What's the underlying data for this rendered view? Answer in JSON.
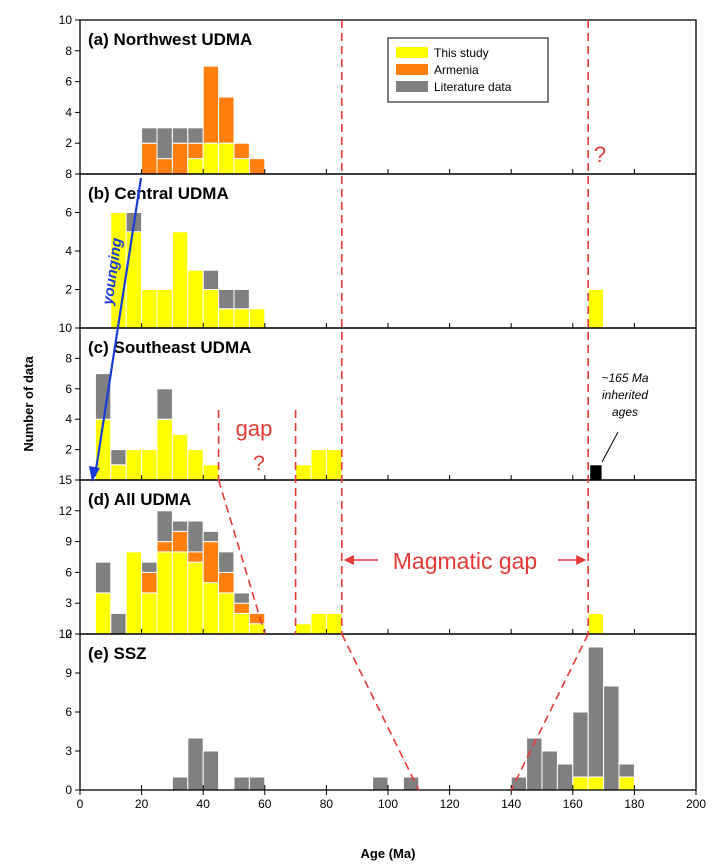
{
  "chart_data": {
    "type": "bar",
    "stacked": true,
    "bin_width": 5,
    "xlabel": "Age (Ma)",
    "ylabel": "Number of data",
    "xlim": [
      0,
      200
    ],
    "x_ticks": [
      "0",
      "20",
      "40",
      "60",
      "80",
      "100",
      "120",
      "140",
      "160",
      "180",
      "200"
    ],
    "colors": {
      "This study": "#ffff00",
      "Armenia": "#ff7f0e",
      "Literature data": "#808080",
      "inherited": "#000000"
    },
    "legend": {
      "position": "top-right",
      "entries": [
        "This study",
        "Armenia",
        "Literature data"
      ]
    },
    "panels": [
      {
        "id": "a",
        "title": "(a)  Northwest UDMA",
        "ylim": [
          0,
          10
        ],
        "y_ticks": [
          "10",
          "8",
          "6",
          "4",
          "2"
        ],
        "x": [
          20,
          25,
          30,
          35,
          40,
          45,
          50,
          55
        ],
        "series": [
          {
            "name": "This study",
            "values": [
              0,
              0,
              0,
              1,
              2,
              2,
              1,
              0
            ]
          },
          {
            "name": "Armenia",
            "values": [
              2,
              1,
              2,
              1,
              5,
              3,
              1,
              1
            ]
          },
          {
            "name": "Literature data",
            "values": [
              1,
              2,
              1,
              1,
              0,
              0,
              0,
              0
            ]
          }
        ]
      },
      {
        "id": "b",
        "title": "(b)  Central UDMA",
        "ylim": [
          0,
          8
        ],
        "y_ticks": [
          "8",
          "6",
          "4",
          "2"
        ],
        "x": [
          10,
          15,
          20,
          25,
          30,
          35,
          40,
          45,
          50,
          55,
          165
        ],
        "series": [
          {
            "name": "This study",
            "values": [
              6,
              5,
              2,
              2,
              5,
              3,
              2,
              1,
              1,
              1,
              2
            ]
          },
          {
            "name": "Literature data",
            "values": [
              0,
              1,
              0,
              0,
              0,
              0,
              1,
              1,
              1,
              0,
              0
            ]
          }
        ]
      },
      {
        "id": "c",
        "title": "(c)  Southeast UDMA",
        "ylim": [
          0,
          10
        ],
        "y_ticks": [
          "10",
          "8",
          "6",
          "4",
          "2"
        ],
        "x": [
          5,
          10,
          15,
          20,
          25,
          30,
          35,
          40,
          70,
          75,
          80,
          165
        ],
        "series": [
          {
            "name": "This study",
            "values": [
              4,
              1,
              2,
              2,
              4,
              3,
              2,
              1,
              1,
              2,
              2,
              0
            ]
          },
          {
            "name": "Literature data",
            "values": [
              3,
              1,
              0,
              0,
              2,
              0,
              0,
              0,
              0,
              0,
              0,
              0
            ]
          },
          {
            "name": "inherited",
            "values": [
              0,
              0,
              0,
              0,
              0,
              0,
              0,
              0,
              0,
              0,
              0,
              1
            ]
          }
        ]
      },
      {
        "id": "d",
        "title": "(d)  All UDMA",
        "ylim": [
          0,
          15
        ],
        "y_ticks": [
          "15",
          "12",
          "9",
          "6",
          "3",
          "0"
        ],
        "x": [
          5,
          10,
          15,
          20,
          25,
          30,
          35,
          40,
          45,
          50,
          55,
          70,
          75,
          80,
          165
        ],
        "series": [
          {
            "name": "This study",
            "values": [
              4,
              0,
              8,
              4,
              8,
              8,
              7,
              5,
              4,
              2,
              1,
              1,
              2,
              2,
              2
            ]
          },
          {
            "name": "Armenia",
            "values": [
              0,
              0,
              0,
              2,
              1,
              2,
              1,
              4,
              2,
              1,
              1,
              0,
              0,
              0,
              0
            ]
          },
          {
            "name": "Literature data",
            "values": [
              3,
              2,
              0,
              1,
              3,
              1,
              3,
              1,
              2,
              1,
              0,
              0,
              0,
              0,
              0
            ]
          }
        ]
      },
      {
        "id": "e",
        "title": "(e)  SSZ",
        "ylim": [
          0,
          12
        ],
        "y_ticks": [
          "12",
          "9",
          "6",
          "3",
          "0"
        ],
        "x": [
          30,
          35,
          40,
          50,
          55,
          95,
          105,
          140,
          145,
          150,
          155,
          160,
          165,
          170,
          175
        ],
        "series": [
          {
            "name": "This study",
            "values": [
              0,
              0,
              0,
              0,
              0,
              0,
              0,
              0,
              0,
              0,
              0,
              1,
              1,
              0,
              1
            ]
          },
          {
            "name": "Literature data",
            "values": [
              1,
              4,
              3,
              1,
              1,
              1,
              1,
              1,
              4,
              3,
              2,
              5,
              10,
              8,
              1
            ]
          }
        ]
      }
    ],
    "annotations": {
      "question_a": "?",
      "gap": "gap",
      "question_c": "?",
      "inherited": [
        "~165 Ma",
        "inherited",
        "ages"
      ],
      "magmatic_gap": "Magmatic gap",
      "younging": "younging"
    }
  }
}
